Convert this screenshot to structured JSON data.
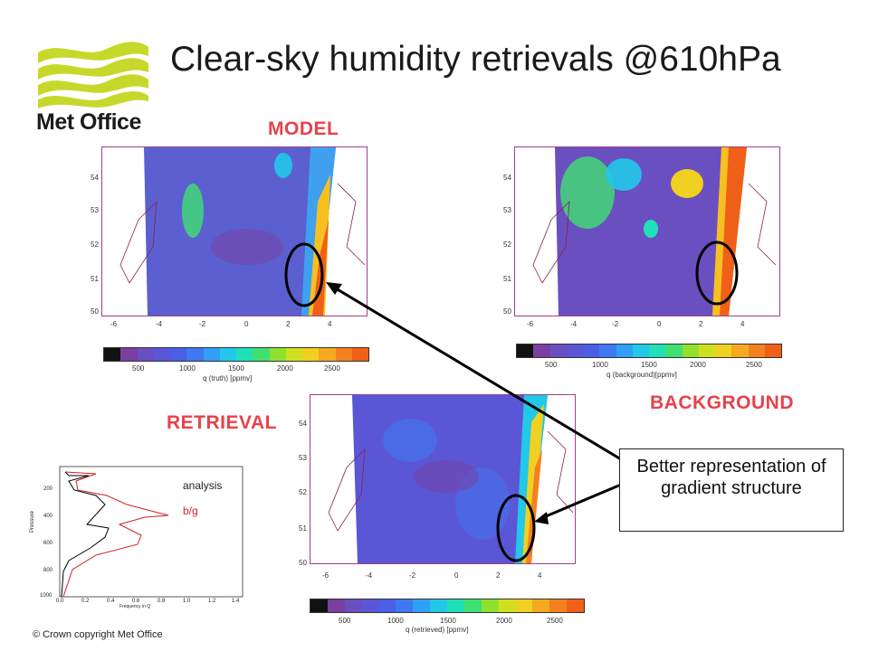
{
  "slide": {
    "title": "Clear-sky humidity retrievals @610hPa",
    "logo_text": "Met Office",
    "copyright": "© Crown copyright   Met Office"
  },
  "panels": {
    "model": {
      "label": "MODEL",
      "colorbar_label": "q (truth) [ppmv]"
    },
    "background": {
      "label": "BACKGROUND",
      "colorbar_label": "q (background)[ppmv]"
    },
    "retrieval": {
      "label": "RETRIEVAL",
      "colorbar_label": "q (retrieved) [ppmv]"
    }
  },
  "map_axes": {
    "y_ticks": [
      "54",
      "53",
      "52",
      "51",
      "50"
    ],
    "x_ticks": [
      "-6",
      "-4",
      "-2",
      "0",
      "2",
      "4"
    ]
  },
  "colorbar": {
    "ticks": [
      "500",
      "1000",
      "1500",
      "2000",
      "2500"
    ],
    "colors": [
      "#111111",
      "#7a3fa0",
      "#6a4fc0",
      "#5a56d6",
      "#4a5ee8",
      "#3f78f0",
      "#2fa0f5",
      "#22c8e8",
      "#20e0b8",
      "#40e070",
      "#90e030",
      "#d0e020",
      "#f0d020",
      "#f5a820",
      "#f58020",
      "#f06018"
    ]
  },
  "profile_plot": {
    "legend": [
      "analysis",
      "b/g"
    ],
    "legend_colors": [
      "#000000",
      "#d42020"
    ],
    "y_label": "Pressure",
    "x_label": "Frequency in Q",
    "y_ticks": [
      "200",
      "400",
      "600",
      "800",
      "1000"
    ],
    "x_ticks": [
      "0.0",
      "0.2",
      "0.4",
      "0.6",
      "0.8",
      "1.0",
      "1.2",
      "1.4"
    ]
  },
  "callout": {
    "text": "Better representation of gradient structure"
  },
  "colors": {
    "label_red": "#e8424b",
    "logo_green": "#c6d92a",
    "frame": "#a0408a"
  }
}
